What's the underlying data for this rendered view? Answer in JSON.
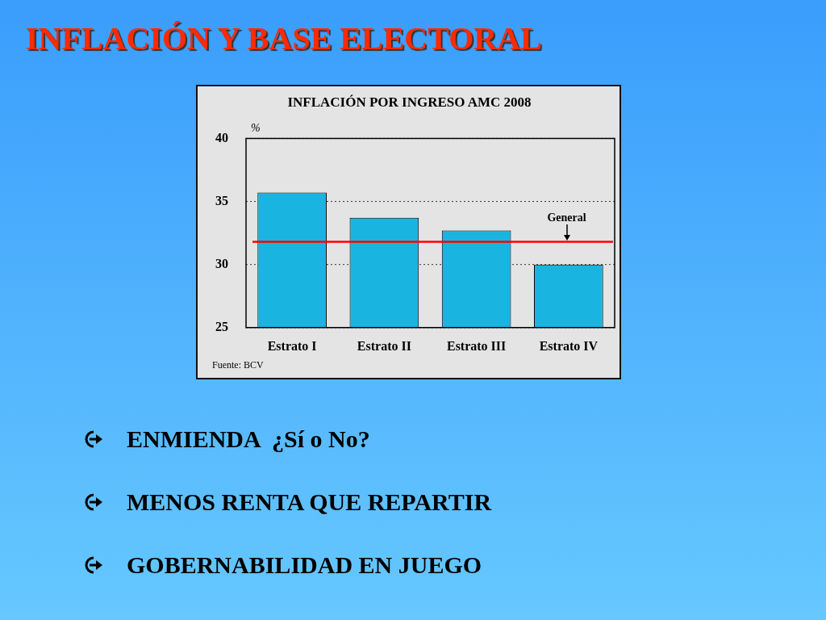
{
  "chart_data": {
    "type": "bar",
    "title": "INFLACIÓN POR INGRESO AMC 2008",
    "ylabel": "%",
    "categories": [
      "Estrato I",
      "Estrato II",
      "Estrato III",
      "Estrato IV"
    ],
    "values": [
      35.7,
      33.7,
      32.7,
      30.0
    ],
    "color": "#19b5e0",
    "ylim": [
      25,
      40
    ],
    "yticks": [
      25,
      30,
      35,
      40
    ],
    "grid": "y",
    "ref_lines": [
      {
        "axis": "y",
        "value": 31.8,
        "label": "General",
        "color": "#ff0000"
      }
    ],
    "annotations": [
      "INFLACIÓN Y BASE ELECTORAL",
      "Fuente: BCV",
      "ENMIENDA  ¿Sí o No?",
      "MENOS RENTA QUE REPARTIR",
      "GOBERNABILIDAD EN JUEGO"
    ]
  }
}
